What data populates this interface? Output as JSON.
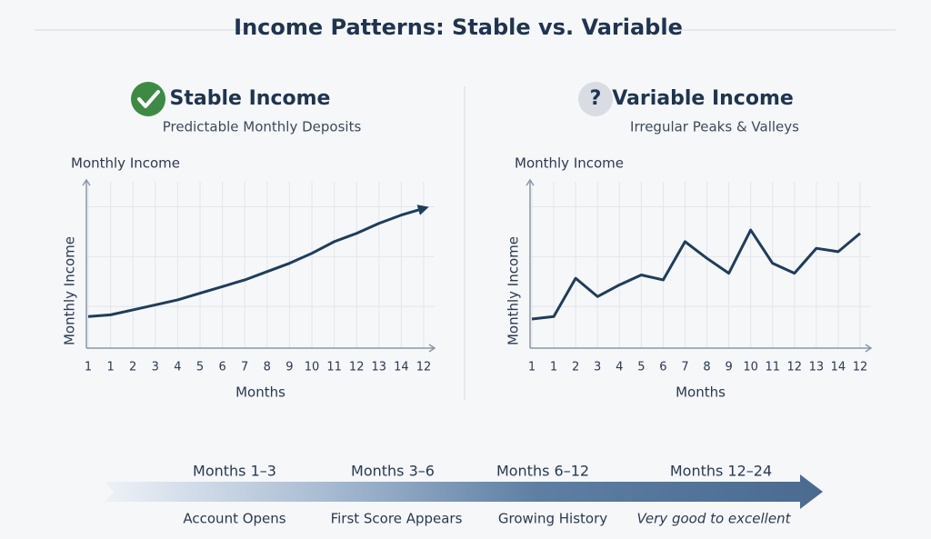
{
  "title": "Income Patterns: Stable vs. Variable",
  "chart_data": [
    {
      "type": "line",
      "title": "Stable Income",
      "subtitle": "Predictable Monthly Deposits",
      "y_label_top": "Monthly Income",
      "ylabel": "Monthly Income",
      "xlabel": "Months",
      "categories": [
        "1",
        "1",
        "2",
        "3",
        "4",
        "5",
        "6",
        "7",
        "8",
        "9",
        "10",
        "11",
        "12",
        "13",
        "14",
        "12"
      ],
      "values": [
        19,
        20,
        23,
        26,
        29,
        33,
        37,
        41,
        46,
        51,
        57,
        64,
        69,
        75,
        80,
        84
      ],
      "color": "#1f3d5c",
      "ylim": [
        0,
        100
      ],
      "grid": true,
      "end_arrow": true
    },
    {
      "type": "line",
      "title": "Variable Income",
      "subtitle": "Irregular Peaks & Valleys",
      "icon_text": "?",
      "y_label_top": "Monthly Income",
      "ylabel": "Monthly Income",
      "xlabel": "Months",
      "categories": [
        "1",
        "1",
        "2",
        "3",
        "4",
        "5",
        "6",
        "7",
        "8",
        "9",
        "10",
        "11",
        "12",
        "13",
        "14",
        "12"
      ],
      "values": [
        17.5,
        19,
        42,
        31,
        38,
        44,
        41,
        64,
        54,
        45,
        71,
        51,
        45,
        60,
        58,
        69
      ],
      "color": "#1f3d5c",
      "ylim": [
        0,
        100
      ],
      "grid": true,
      "end_arrow": false
    }
  ],
  "timeline": [
    {
      "period": "Months  1–3",
      "caption": "Account Opens"
    },
    {
      "period": "Months 3–6",
      "caption": "First Score Appears"
    },
    {
      "period": "Months  6–12",
      "caption": "Growing History"
    },
    {
      "period": "Months 12–24",
      "caption": "Very good to excellent"
    }
  ]
}
